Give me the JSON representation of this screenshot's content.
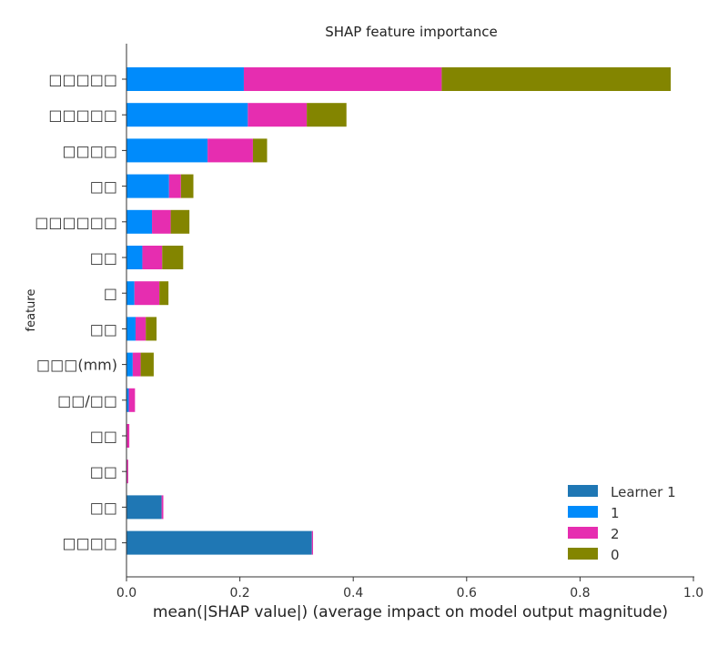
{
  "chart_data": {
    "type": "bar",
    "orientation": "horizontal",
    "stacked": true,
    "title": "SHAP feature importance",
    "xlabel": "mean(|SHAP value|) (average impact on model output magnitude)",
    "ylabel": "feature",
    "xlim": [
      0.0,
      1.0
    ],
    "xticks": [
      "0.0",
      "0.2",
      "0.4",
      "0.6",
      "0.8",
      "1.0"
    ],
    "grid": false,
    "legend_position": "lower-right",
    "categories": [
      "□□□□□",
      "□□□□□",
      "□□□□",
      "□□",
      "□□□□□□",
      "□□",
      "□",
      "□□",
      "□□□(mm)",
      "□□/□□",
      "□□",
      "□□",
      "□□",
      "□□□□"
    ],
    "series": [
      {
        "name": "Learner 1",
        "color": "#1f77b4",
        "values": [
          0.0,
          0.0,
          0.0,
          0.0,
          0.0,
          0.0,
          0.0,
          0.0,
          0.0,
          0.0,
          0.0,
          0.0,
          0.062,
          0.327
        ]
      },
      {
        "name": "1",
        "color": "#008bfb",
        "values": [
          0.207,
          0.214,
          0.143,
          0.075,
          0.045,
          0.028,
          0.014,
          0.016,
          0.011,
          0.004,
          0.0,
          0.0,
          0.0,
          0.0
        ]
      },
      {
        "name": "2",
        "color": "#e62db0",
        "values": [
          0.349,
          0.104,
          0.08,
          0.021,
          0.033,
          0.035,
          0.044,
          0.018,
          0.014,
          0.011,
          0.005,
          0.003,
          0.003,
          0.002
        ]
      },
      {
        "name": "0",
        "color": "#838500",
        "values": [
          0.404,
          0.07,
          0.025,
          0.022,
          0.033,
          0.037,
          0.016,
          0.019,
          0.023,
          0.0,
          0.0,
          0.0,
          0.0,
          0.0
        ]
      }
    ]
  }
}
